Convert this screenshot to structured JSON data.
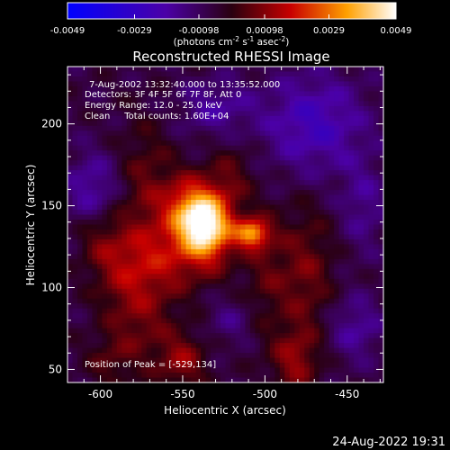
{
  "chart_data": {
    "type": "heatmap",
    "title": "Reconstructed RHESSI Image",
    "xlabel": "Heliocentric X (arcsec)",
    "ylabel": "Heliocentric Y (arcsec)",
    "xlim": [
      -620,
      -428
    ],
    "ylim": [
      42,
      235
    ],
    "x_ticks": [
      -600,
      -550,
      -500,
      -450
    ],
    "y_ticks": [
      50,
      100,
      150,
      200
    ],
    "colorbar": {
      "min": -0.0049,
      "max": 0.0049,
      "tick_values": [
        -0.0049,
        -0.0029,
        -0.00098,
        0.00098,
        0.0029,
        0.0049
      ],
      "tick_labels": [
        "-0.0049",
        "-0.0029",
        "-0.00098",
        "0.00098",
        "0.0029",
        "0.0049"
      ],
      "unit_parts": [
        "(photons cm",
        "-2",
        " s",
        "-1",
        " asec",
        "-2",
        ")"
      ]
    },
    "annotations": [
      "7-Aug-2002 13:32:40.000 to 13:35:52.000",
      "Detectors: 3F 4F 5F 6F 7F 8F, Att 0",
      "Energy Range: 12.0 - 25.0 keV",
      "Clean     Total counts: 1.60E+04",
      "Position of Peak = [-529,134]"
    ],
    "peak": {
      "x": -529,
      "y": 134
    },
    "features": [
      {
        "x": -535,
        "y": 138,
        "sx": 11,
        "sy": 15,
        "value": 0.0052
      },
      {
        "x": -508,
        "y": 133,
        "sx": 7,
        "sy": 6,
        "value": 0.0036
      },
      {
        "x": -548,
        "y": 148,
        "sx": 10,
        "sy": 14,
        "value": 0.0022
      },
      {
        "x": -560,
        "y": 118,
        "sx": 18,
        "sy": 16,
        "value": 0.0016
      },
      {
        "x": -572,
        "y": 160,
        "sx": 12,
        "sy": 28,
        "value": 0.0012
      },
      {
        "x": -520,
        "y": 170,
        "sx": 10,
        "sy": 14,
        "value": 0.0009
      },
      {
        "x": -500,
        "y": 110,
        "sx": 10,
        "sy": 28,
        "value": 0.0009
      },
      {
        "x": -588,
        "y": 110,
        "sx": 12,
        "sy": 18,
        "value": 0.001
      },
      {
        "x": -575,
        "y": 80,
        "sx": 14,
        "sy": 22,
        "value": 0.0012
      },
      {
        "x": -550,
        "y": 55,
        "sx": 10,
        "sy": 12,
        "value": 0.0016
      },
      {
        "x": -475,
        "y": 108,
        "sx": 12,
        "sy": 30,
        "value": 0.0013
      },
      {
        "x": -482,
        "y": 55,
        "sx": 10,
        "sy": 14,
        "value": 0.0015
      },
      {
        "x": -595,
        "y": 55,
        "sx": 10,
        "sy": 12,
        "value": 0.0008
      },
      {
        "x": -600,
        "y": 130,
        "sx": 10,
        "sy": 14,
        "value": 0.001
      },
      {
        "x": -605,
        "y": 160,
        "sx": 12,
        "sy": 16,
        "value": -0.0014
      },
      {
        "x": -470,
        "y": 200,
        "sx": 22,
        "sy": 22,
        "value": -0.0018
      },
      {
        "x": -530,
        "y": 210,
        "sx": 16,
        "sy": 12,
        "value": -0.0012
      },
      {
        "x": -440,
        "y": 150,
        "sx": 10,
        "sy": 20,
        "value": -0.001
      },
      {
        "x": -445,
        "y": 75,
        "sx": 12,
        "sy": 14,
        "value": -0.0012
      },
      {
        "x": -520,
        "y": 80,
        "sx": 10,
        "sy": 10,
        "value": -0.0008
      }
    ]
  },
  "footer": {
    "timestamp": "24-Aug-2022 19:31"
  }
}
